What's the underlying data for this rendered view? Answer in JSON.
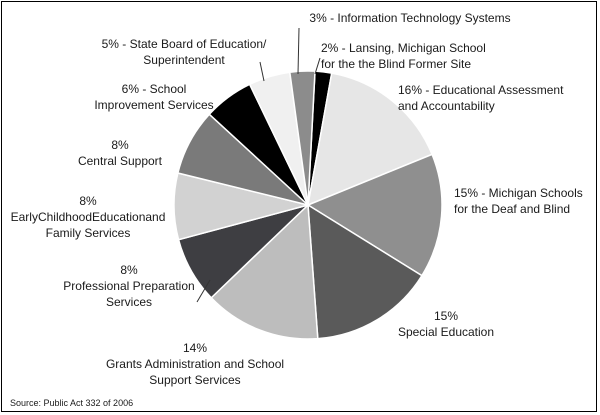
{
  "chart_data": {
    "type": "pie",
    "start_label": "2% - Lansing, Michigan School for the the Blind Former Site",
    "slices": [
      {
        "label": "2% - Lansing, Michigan School for the the Blind Former Site",
        "value": 2,
        "color": "#000000",
        "text_lines": [
          "2% - Lansing, Michigan School",
          "for the the Blind Former Site"
        ]
      },
      {
        "label": "16% - Educational Assessment and Accountability",
        "value": 16,
        "color": "#e6e6e6",
        "text_lines": [
          "16% - Educational Assessment",
          "and Accountability"
        ]
      },
      {
        "label": "15% - Michigan Schools for the Deaf and Blind",
        "value": 15,
        "color": "#8f8f8f",
        "text_lines": [
          "15% - Michigan Schools",
          "for the Deaf and Blind"
        ]
      },
      {
        "label": "15% Special Education",
        "value": 15,
        "color": "#5a5a5a",
        "text_lines": [
          "15%",
          "Special Education"
        ]
      },
      {
        "label": "14% Grants Administration and School Support Services",
        "value": 14,
        "color": "#bdbdbd",
        "text_lines": [
          "14%",
          "Grants Administration and School",
          "Support Services"
        ]
      },
      {
        "label": "8% Professional Preparation Services",
        "value": 8,
        "color": "#3e3e42",
        "text_lines": [
          "8%",
          "Professional Preparation",
          "Services"
        ]
      },
      {
        "label": "8% EarlyChildhoodEducationand Family Services",
        "value": 8,
        "color": "#d2d2d2",
        "text_lines": [
          "8%",
          "EarlyChildhoodEducationand",
          "Family Services"
        ]
      },
      {
        "label": "8% Central Support",
        "value": 8,
        "color": "#7a7a7a",
        "text_lines": [
          "8%",
          "Central Support"
        ]
      },
      {
        "label": "6% - School Improvement Services",
        "value": 6,
        "color": "#000000",
        "text_lines": [
          "6% - School",
          "Improvement Services"
        ]
      },
      {
        "label": "5% - State Board of Education/ Superintendent",
        "value": 5,
        "color": "#f0f0f0",
        "text_lines": [
          "5% - State Board of Education/",
          "Superintendent"
        ]
      },
      {
        "label": "3% - Information Technology Systems",
        "value": 3,
        "color": "#8c8c8c",
        "text_lines": [
          "3% - Information Technology Systems"
        ]
      }
    ]
  },
  "source_note": "Source: Public Act 332 of 2006"
}
